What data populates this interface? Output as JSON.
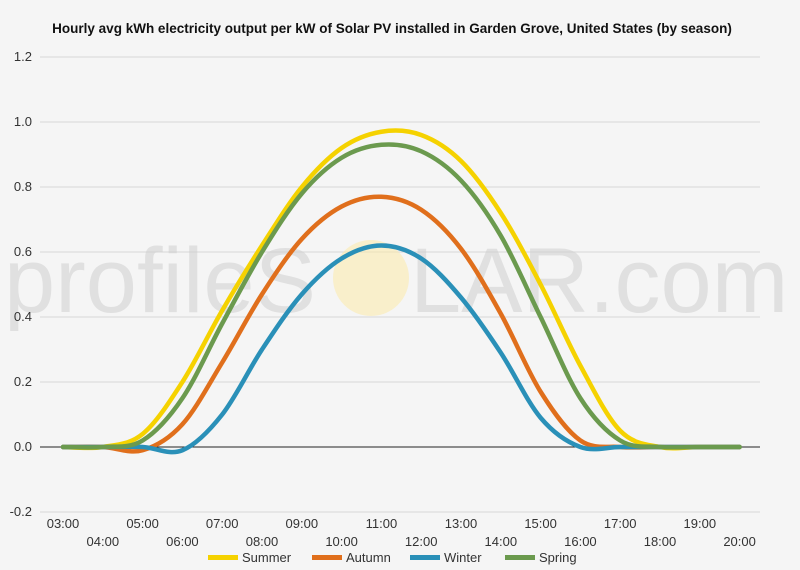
{
  "chart_data": {
    "type": "line",
    "title": "Hourly avg kWh electricity output per kW of Solar PV installed in Garden Grove, United States (by season)",
    "xlabel": "",
    "ylabel": "",
    "ylim": [
      -0.2,
      1.2
    ],
    "yticks": [
      "-0.2",
      "0.0",
      "0.2",
      "0.4",
      "0.6",
      "0.8",
      "1.0",
      "1.2"
    ],
    "ytick_values": [
      -0.2,
      0.0,
      0.2,
      0.4,
      0.6,
      0.8,
      1.0,
      1.2
    ],
    "categories": [
      "03:00",
      "04:00",
      "05:00",
      "06:00",
      "07:00",
      "08:00",
      "09:00",
      "10:00",
      "11:00",
      "12:00",
      "13:00",
      "14:00",
      "15:00",
      "16:00",
      "17:00",
      "18:00",
      "19:00",
      "20:00"
    ],
    "legend_position": "bottom",
    "watermark": {
      "left": "profileS",
      "right": "LAR.com"
    },
    "series": [
      {
        "name": "Summer",
        "color": "#f5d200",
        "values": [
          0.0,
          0.0,
          0.04,
          0.2,
          0.42,
          0.62,
          0.8,
          0.92,
          0.97,
          0.96,
          0.88,
          0.72,
          0.5,
          0.25,
          0.05,
          0.0,
          0.0,
          0.0
        ]
      },
      {
        "name": "Autumn",
        "color": "#e06f1c",
        "values": [
          0.0,
          0.0,
          -0.01,
          0.07,
          0.26,
          0.47,
          0.64,
          0.74,
          0.77,
          0.73,
          0.61,
          0.41,
          0.17,
          0.02,
          0.0,
          0.0,
          0.0,
          0.0
        ]
      },
      {
        "name": "Winter",
        "color": "#2a90b8",
        "values": [
          0.0,
          0.0,
          0.0,
          -0.01,
          0.1,
          0.3,
          0.47,
          0.58,
          0.62,
          0.58,
          0.46,
          0.29,
          0.09,
          0.0,
          0.0,
          0.0,
          0.0,
          0.0
        ]
      },
      {
        "name": "Spring",
        "color": "#6b9a4e",
        "values": [
          0.0,
          0.0,
          0.02,
          0.15,
          0.38,
          0.6,
          0.78,
          0.89,
          0.93,
          0.91,
          0.82,
          0.65,
          0.4,
          0.15,
          0.02,
          0.0,
          0.0,
          0.0
        ]
      }
    ]
  }
}
